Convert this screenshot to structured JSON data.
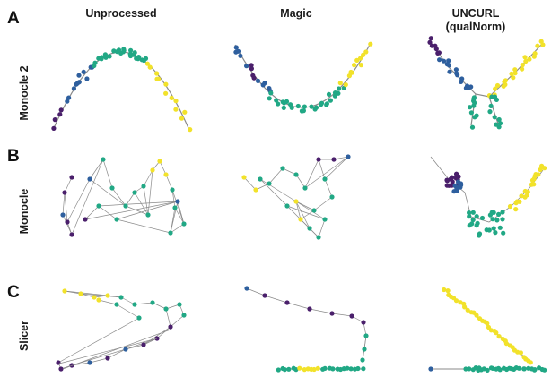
{
  "columns": [
    "Unprocessed",
    "Magic",
    "UNCURL\n(qualNorm)"
  ],
  "column_lines": {
    "c0": [
      "Unprocessed"
    ],
    "c1": [
      "Magic"
    ],
    "c2": [
      "UNCURL",
      "(qualNorm)"
    ]
  },
  "rows": [
    {
      "letter": "A",
      "label": "Monocle 2"
    },
    {
      "letter": "B",
      "label": "Monocle"
    },
    {
      "letter": "C",
      "label": "Slicer"
    }
  ],
  "colors": {
    "purple": "#4a1f6b",
    "blue": "#2e5f9e",
    "teal": "#21a885",
    "yellow": "#f2e22a",
    "line": "#8a8a8a"
  }
}
